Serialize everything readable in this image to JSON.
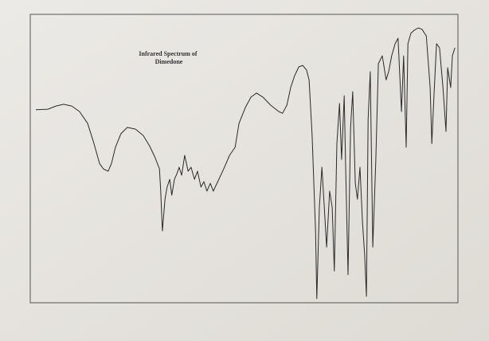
{
  "chart_data": {
    "type": "line",
    "title": [
      "Infrared Spectrum of",
      "Dimedone"
    ],
    "color": "#2a2a2a",
    "xlim": [
      0,
      100
    ],
    "ylim": [
      0,
      100
    ],
    "x": [
      1.3,
      4.1,
      6.0,
      7.8,
      9.7,
      11.5,
      13.4,
      14.9,
      16.2,
      17.1,
      18.2,
      19.0,
      19.9,
      21.2,
      22.7,
      24.6,
      26.4,
      27.9,
      29.2,
      30.2,
      30.5,
      30.9,
      31.5,
      32.0,
      32.6,
      33.1,
      33.7,
      34.3,
      34.8,
      35.4,
      36.1,
      36.9,
      37.6,
      38.4,
      39.1,
      39.9,
      40.6,
      41.3,
      42.1,
      42.8,
      44.1,
      45.4,
      46.6,
      47.9,
      48.8,
      50.3,
      51.6,
      52.9,
      54.4,
      56.2,
      58.1,
      59.0,
      60.0,
      60.9,
      61.8,
      62.8,
      63.7,
      64.6,
      65.2,
      65.9,
      66.7,
      67.0,
      67.6,
      68.2,
      68.7,
      69.3,
      70.0,
      70.6,
      71.1,
      71.7,
      72.3,
      72.8,
      73.4,
      73.7,
      74.3,
      74.9,
      75.4,
      76.0,
      76.5,
      77.1,
      77.7,
      78.2,
      78.6,
      79.0,
      79.5,
      80.1,
      80.8,
      81.4,
      82.3,
      83.2,
      83.8,
      84.5,
      85.3,
      86.0,
      86.8,
      87.3,
      87.9,
      88.3,
      89.0,
      89.8,
      90.7,
      91.6,
      92.6,
      93.5,
      93.9,
      94.4,
      95.0,
      95.7,
      96.5,
      97.2,
      97.6,
      98.3,
      98.7,
      99.3
    ],
    "values": [
      66.9,
      67.1,
      68.2,
      68.8,
      68.2,
      66.3,
      62.2,
      55.2,
      48.3,
      46.4,
      45.6,
      48.3,
      53.9,
      58.6,
      60.8,
      60.2,
      58.0,
      54.4,
      50.3,
      46.4,
      38.7,
      24.9,
      35.9,
      40.1,
      42.8,
      37.3,
      42.8,
      44.8,
      47.0,
      44.2,
      51.1,
      45.6,
      47.0,
      42.8,
      45.6,
      40.1,
      42.0,
      38.7,
      41.4,
      38.7,
      42.8,
      47.0,
      51.1,
      53.9,
      62.2,
      67.7,
      71.3,
      72.7,
      71.3,
      68.5,
      66.3,
      65.7,
      68.5,
      74.6,
      78.7,
      81.8,
      82.3,
      80.7,
      77.3,
      58.0,
      24.9,
      1.4,
      33.1,
      47.0,
      34.5,
      19.3,
      38.7,
      33.1,
      11.0,
      55.2,
      69.1,
      49.7,
      71.8,
      49.7,
      9.7,
      60.8,
      73.2,
      41.4,
      35.9,
      47.0,
      27.6,
      16.6,
      2.2,
      63.5,
      80.1,
      19.3,
      49.7,
      82.9,
      85.6,
      77.3,
      80.1,
      85.6,
      89.8,
      91.7,
      66.3,
      85.6,
      53.9,
      89.8,
      93.4,
      94.5,
      95.3,
      94.8,
      92.5,
      74.6,
      55.2,
      71.8,
      89.8,
      88.4,
      74.6,
      59.4,
      81.5,
      74.6,
      85.6,
      88.4
    ]
  }
}
